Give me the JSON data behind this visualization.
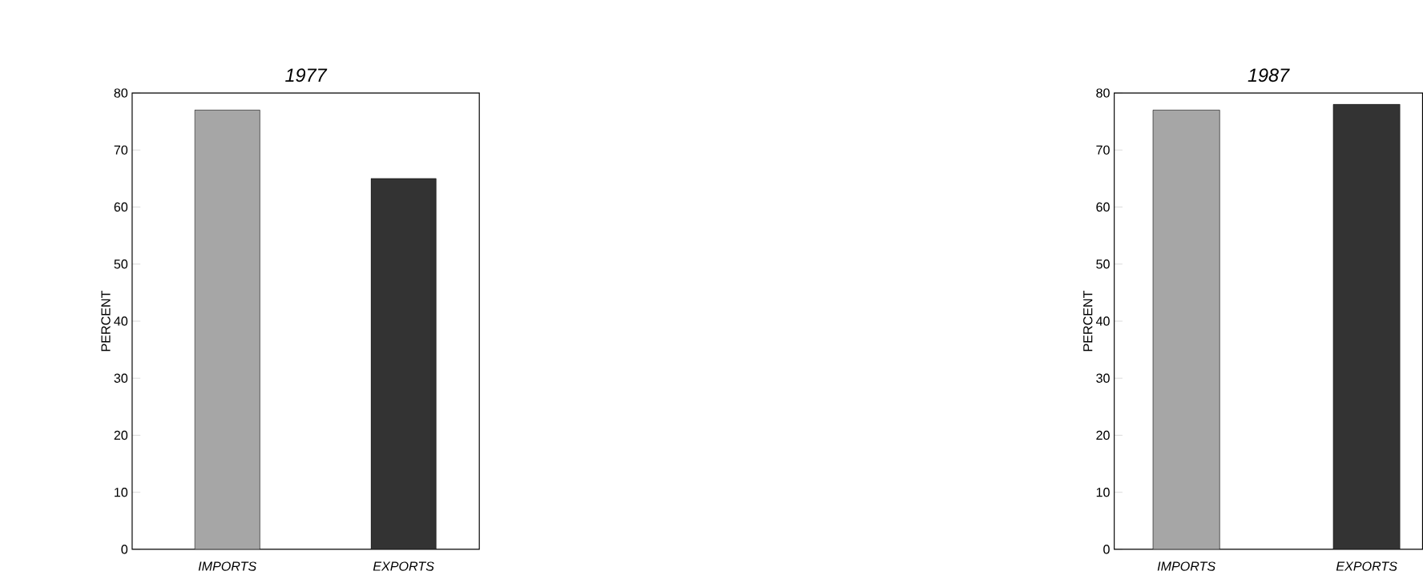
{
  "chart_data": [
    {
      "type": "bar",
      "title": "1977",
      "ylabel": "PERCENT",
      "categories": [
        "IMPORTS",
        "EXPORTS"
      ],
      "values": [
        77,
        65
      ],
      "colors": [
        "#a6a6a6",
        "#333333"
      ],
      "ylim": [
        0,
        80
      ],
      "yticks": [
        0,
        10,
        20,
        30,
        40,
        50,
        60,
        70,
        80
      ]
    },
    {
      "type": "bar",
      "title": "1987",
      "ylabel": "PERCENT",
      "categories": [
        "IMPORTS",
        "EXPORTS"
      ],
      "values": [
        77,
        78
      ],
      "colors": [
        "#a6a6a6",
        "#333333"
      ],
      "ylim": [
        0,
        80
      ],
      "yticks": [
        0,
        10,
        20,
        30,
        40,
        50,
        60,
        70,
        80
      ]
    }
  ]
}
